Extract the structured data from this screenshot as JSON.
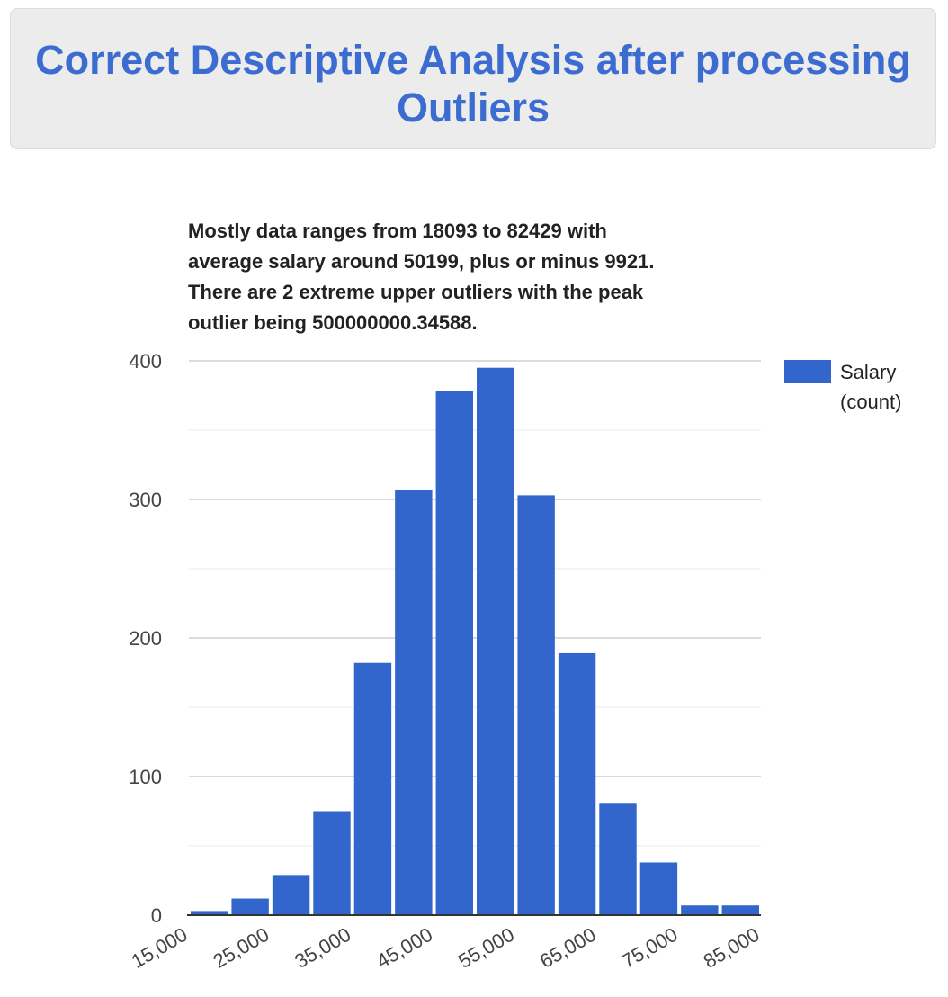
{
  "page": {
    "heading": "Correct Descriptive Analysis after processing Outliers"
  },
  "chart_data": {
    "type": "bar",
    "subtype": "histogram",
    "title_lines": [
      "Mostly data ranges from 18093 to 82429 with",
      "average salary around 50199, plus or minus 9921.",
      "There are 2 extreme upper outliers with the peak",
      "outlier being 500000000.34588."
    ],
    "xlabel": "",
    "ylabel": "",
    "xlim": [
      15000,
      85000
    ],
    "ylim": [
      0,
      400
    ],
    "x_ticks": [
      15000,
      25000,
      35000,
      45000,
      55000,
      65000,
      75000,
      85000
    ],
    "x_tick_labels": [
      "15,000",
      "25,000",
      "35,000",
      "45,000",
      "55,000",
      "65,000",
      "75,000",
      "85,000"
    ],
    "y_ticks": [
      0,
      100,
      200,
      300,
      400
    ],
    "y_tick_labels": [
      "0",
      "100",
      "200",
      "300",
      "400"
    ],
    "minor_gridlines": [
      50,
      150,
      250,
      350
    ],
    "grid": true,
    "bin_width": 5000,
    "series": [
      {
        "name": "Salary (count)",
        "color": "#3366cc",
        "bins": [
          {
            "start": 15000,
            "end": 20000,
            "count": 3
          },
          {
            "start": 20000,
            "end": 25000,
            "count": 12
          },
          {
            "start": 25000,
            "end": 30000,
            "count": 29
          },
          {
            "start": 30000,
            "end": 35000,
            "count": 75
          },
          {
            "start": 35000,
            "end": 40000,
            "count": 182
          },
          {
            "start": 40000,
            "end": 45000,
            "count": 307
          },
          {
            "start": 45000,
            "end": 50000,
            "count": 378
          },
          {
            "start": 50000,
            "end": 55000,
            "count": 395
          },
          {
            "start": 55000,
            "end": 60000,
            "count": 303
          },
          {
            "start": 60000,
            "end": 65000,
            "count": 189
          },
          {
            "start": 65000,
            "end": 70000,
            "count": 81
          },
          {
            "start": 70000,
            "end": 75000,
            "count": 38
          },
          {
            "start": 75000,
            "end": 80000,
            "count": 7
          },
          {
            "start": 80000,
            "end": 85000,
            "count": 7
          }
        ]
      }
    ],
    "legend": {
      "position": "right",
      "lines": [
        "Salary",
        "(count)"
      ]
    }
  }
}
